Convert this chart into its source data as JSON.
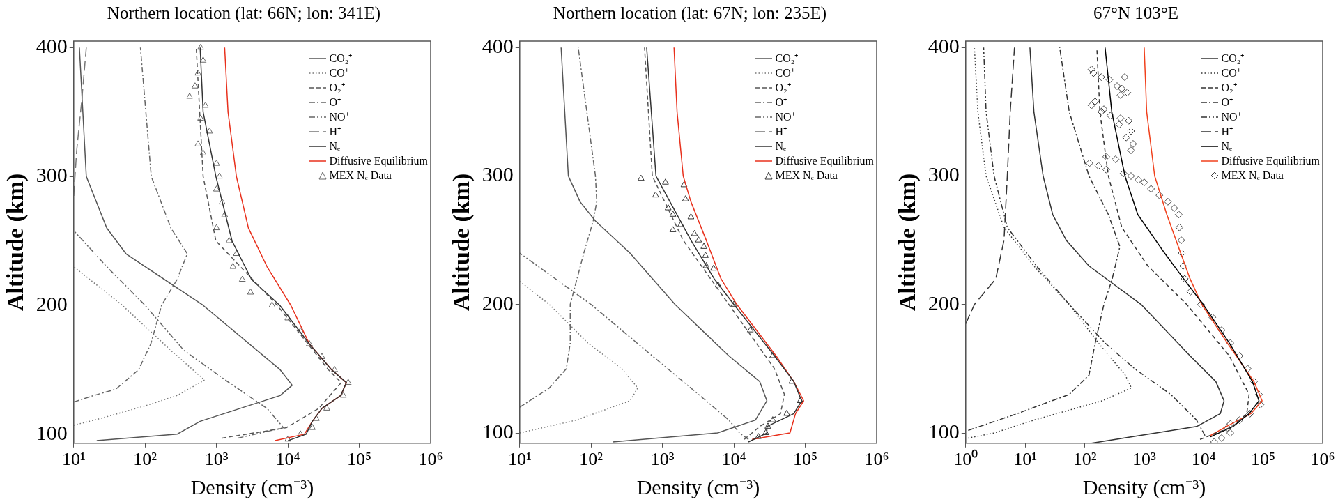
{
  "chart_data": [
    {
      "type": "line",
      "title": "Northern location (lat: 66N; lon: 341E)",
      "xlabel": "Density (cm⁻³)",
      "ylabel": "Altitude (km)",
      "log": "x",
      "grid": false,
      "legend": "top right",
      "xlim": [
        10,
        1000000
      ],
      "xticks": [
        {
          "value": 10,
          "label": "10¹"
        },
        {
          "value": 100,
          "label": "10²"
        },
        {
          "value": 1000,
          "label": "10³"
        },
        {
          "value": 10000,
          "label": "10⁴"
        },
        {
          "value": 100000,
          "label": "10⁵"
        },
        {
          "value": 1000000,
          "label": "10⁶"
        }
      ],
      "ylim": [
        93,
        405
      ],
      "yticks": [
        100,
        200,
        300,
        400
      ],
      "series": [
        {
          "name": "CO₂⁺",
          "color": "#555555",
          "line_style": "solid",
          "x": [
            21,
            280,
            590,
            7800,
            11500,
            7800,
            650,
            54,
            29,
            15,
            12
          ],
          "values": [
            95,
            100,
            110,
            130,
            138,
            150,
            200,
            240,
            260,
            300,
            400
          ]
        },
        {
          "name": "CO⁺",
          "color": "#777777",
          "line_style": "dotted",
          "x": [
            10,
            23,
            100,
            280,
            680,
            230,
            48,
            10
          ],
          "values": [
            107,
            112,
            122,
            130,
            142,
            165,
            200,
            230
          ]
        },
        {
          "name": "O₂⁺",
          "color": "#555555",
          "line_style": "dashed",
          "x": [
            1200,
            9500,
            27000,
            56000,
            37000,
            7100,
            980,
            650,
            520
          ],
          "values": [
            97,
            105,
            120,
            140,
            150,
            200,
            250,
            300,
            400
          ]
        },
        {
          "name": "O⁺",
          "color": "#666666",
          "line_style": "dashdot",
          "x": [
            10,
            19,
            39,
            81,
            120,
            170,
            280,
            390,
            230,
            122,
            86
          ],
          "values": [
            125,
            130,
            135,
            150,
            170,
            200,
            220,
            240,
            260,
            300,
            400
          ]
        },
        {
          "name": "NO⁺",
          "color": "#666666",
          "line_style": "dashdotdot",
          "x": [
            2000,
            8700,
            5100,
            1500,
            350,
            100,
            29,
            10
          ],
          "values": [
            97,
            105,
            120,
            140,
            165,
            200,
            230,
            258
          ]
        },
        {
          "name": "H⁺",
          "color": "#777777",
          "line_style": "longdash",
          "x": [
            10,
            11,
            13,
            15
          ],
          "values": [
            285,
            320,
            360,
            400
          ]
        },
        {
          "name": "Nₑ",
          "color": "#333333",
          "line_style": "solid",
          "x": [
            10000,
            18000,
            22000,
            30000,
            55000,
            66000,
            41000,
            20000,
            7700,
            3100,
            1650,
            980,
            650,
            590
          ],
          "values": [
            95,
            100,
            110,
            120,
            130,
            140,
            150,
            170,
            200,
            220,
            250,
            300,
            350,
            400
          ]
        },
        {
          "name": "Diffusive Equilibrium",
          "color": "#e8301c",
          "line_style": "solid",
          "x": [
            6600,
            17000,
            22000,
            30000,
            55000,
            66000,
            41000,
            20000,
            11000,
            5100,
            2800,
            1900,
            1450,
            1300
          ],
          "values": [
            95,
            100,
            110,
            120,
            130,
            140,
            150,
            170,
            200,
            230,
            260,
            300,
            350,
            400
          ]
        },
        {
          "name": "MEX Nₑ Data",
          "color": "#666666",
          "type": "scatter",
          "marker": "triangle",
          "x": [
            10000,
            15000,
            22000,
            25000,
            35000,
            60000,
            70000,
            45000,
            30000,
            20000,
            15000,
            10000,
            6000,
            3000,
            2300,
            1700,
            1900,
            1500,
            1000,
            1300,
            1200,
            1000,
            1100,
            1000,
            650,
            550,
            800,
            600,
            700,
            420,
            500,
            550,
            650,
            600
          ],
          "values": [
            96,
            100,
            105,
            112,
            120,
            130,
            140,
            150,
            160,
            170,
            180,
            190,
            200,
            210,
            220,
            230,
            240,
            250,
            260,
            270,
            280,
            290,
            300,
            310,
            318,
            325,
            335,
            345,
            355,
            362,
            370,
            380,
            390,
            400
          ]
        }
      ]
    },
    {
      "type": "line",
      "title": "Northern location (lat: 67N; lon: 235E)",
      "xlabel": "Density (cm⁻³)",
      "ylabel": "Altitude (km)",
      "log": "x",
      "grid": false,
      "legend": "top right",
      "xlim": [
        10,
        1000000
      ],
      "xticks": [
        {
          "value": 10,
          "label": "10¹"
        },
        {
          "value": 100,
          "label": "10²"
        },
        {
          "value": 1000,
          "label": "10³"
        },
        {
          "value": 10000,
          "label": "10⁴"
        },
        {
          "value": 100000,
          "label": "10⁵"
        },
        {
          "value": 1000000,
          "label": "10⁶"
        }
      ],
      "ylim": [
        92,
        405
      ],
      "yticks": [
        100,
        200,
        300,
        400
      ],
      "series": [
        {
          "name": "CO₂⁺",
          "color": "#555555",
          "line_style": "solid",
          "x": [
            200,
            5900,
            20000,
            29000,
            23000,
            8500,
            1500,
            350,
            115,
            70,
            48,
            38
          ],
          "values": [
            93,
            100,
            110,
            125,
            140,
            160,
            200,
            240,
            265,
            280,
            300,
            400
          ]
        },
        {
          "name": "CO⁺",
          "color": "#777777",
          "line_style": "dotted",
          "x": [
            10,
            62,
            350,
            450,
            270,
            90,
            26,
            10
          ],
          "values": [
            100,
            110,
            125,
            135,
            150,
            170,
            200,
            218
          ]
        },
        {
          "name": "O₂⁺",
          "color": "#555555",
          "line_style": "dashed",
          "x": [
            14000,
            23000,
            45000,
            51000,
            37000,
            8500,
            1950,
            720,
            560
          ],
          "values": [
            95,
            105,
            115,
            130,
            150,
            200,
            250,
            300,
            400
          ]
        },
        {
          "name": "O⁺",
          "color": "#666666",
          "line_style": "dashdot",
          "x": [
            10,
            26,
            45,
            51,
            51,
            79,
            107,
            120,
            115,
            66
          ],
          "values": [
            120,
            135,
            150,
            170,
            200,
            240,
            265,
            280,
            300,
            400
          ]
        },
        {
          "name": "NO⁺",
          "color": "#666666",
          "line_style": "dashdotdot",
          "x": [
            16000,
            12000,
            8500,
            3200,
            720,
            100,
            10
          ],
          "values": [
            95,
            100,
            110,
            130,
            160,
            200,
            240
          ]
        },
        {
          "name": "H⁺",
          "color": "#777777",
          "line_style": "longdash"
        },
        {
          "name": "Nₑ",
          "color": "#333333",
          "line_style": "solid",
          "x": [
            16000,
            29000,
            29000,
            69000,
            89000,
            69000,
            37000,
            10000,
            5300,
            2500,
            810,
            600
          ],
          "values": [
            93,
            100,
            105,
            115,
            125,
            140,
            160,
            200,
            220,
            250,
            300,
            400
          ]
        },
        {
          "name": "Diffusive Equilibrium",
          "color": "#e8301c",
          "line_style": "solid",
          "x": [
            18000,
            61000,
            73000,
            95000,
            69000,
            39000,
            11000,
            6600,
            4100,
            2500,
            1950,
            1600,
            1450
          ],
          "values": [
            95,
            100,
            115,
            125,
            140,
            160,
            200,
            220,
            250,
            280,
            300,
            350,
            400
          ]
        },
        {
          "name": "MEX Nₑ Data",
          "color": "#333333",
          "type": "scatter",
          "marker": "triangle",
          "x": [
            22000,
            28000,
            30000,
            35000,
            55000,
            85000,
            65000,
            35000,
            17000,
            10000,
            6000,
            5200,
            4100,
            4000,
            3800,
            3200,
            2800,
            1400,
            1800,
            2500,
            1400,
            1200,
            2100,
            800,
            2000,
            1100,
            500
          ],
          "values": [
            97,
            100,
            105,
            110,
            115,
            125,
            140,
            160,
            180,
            200,
            215,
            228,
            230,
            238,
            245,
            250,
            255,
            258,
            262,
            268,
            270,
            275,
            282,
            285,
            293,
            295,
            298
          ]
        }
      ]
    },
    {
      "type": "line",
      "title": "67°N 103°E",
      "xlabel": "Density (cm⁻³)",
      "ylabel": "Altitude (km)",
      "log": "x",
      "grid": false,
      "legend": "top right",
      "xlim": [
        1,
        1000000
      ],
      "xticks": [
        {
          "value": 1,
          "label": "10⁰"
        },
        {
          "value": 10,
          "label": "10¹"
        },
        {
          "value": 100,
          "label": "10²"
        },
        {
          "value": 1000,
          "label": "10³"
        },
        {
          "value": 10000,
          "label": "10⁴"
        },
        {
          "value": 100000,
          "label": "10⁵"
        },
        {
          "value": 1000000,
          "label": "10⁶"
        }
      ],
      "ylim": [
        92,
        405
      ],
      "yticks": [
        100,
        200,
        300,
        400
      ],
      "series": [
        {
          "name": "CO₂⁺",
          "color": "#333333",
          "line_style": "solid",
          "x": [
            130,
            7600,
            19000,
            22000,
            16000,
            5900,
            890,
            118,
            49,
            29,
            20,
            14,
            12
          ],
          "values": [
            92,
            105,
            115,
            125,
            140,
            160,
            200,
            230,
            250,
            270,
            300,
            350,
            400
          ]
        },
        {
          "name": "CO⁺",
          "color": "#333333",
          "line_style": "dotted",
          "x": [
            1.1,
            3,
            14,
            195,
            610,
            480,
            170,
            55,
            14,
            4.4,
            2.2,
            1.6,
            1.4
          ],
          "values": [
            96,
            100,
            110,
            125,
            135,
            145,
            170,
            200,
            230,
            260,
            300,
            350,
            400
          ]
        },
        {
          "name": "O₂⁺",
          "color": "#333333",
          "line_style": "dashed",
          "x": [
            8700,
            31000,
            53000,
            58000,
            27000,
            5200,
            1150,
            420,
            250,
            180,
            160
          ],
          "values": [
            95,
            105,
            115,
            130,
            160,
            200,
            230,
            260,
            300,
            350,
            400
          ]
        },
        {
          "name": "O⁺",
          "color": "#333333",
          "line_style": "dashdot",
          "x": [
            1.1,
            7.3,
            55,
            118,
            150,
            210,
            290,
            390,
            250,
            118,
            55,
            38
          ],
          "values": [
            102,
            115,
            130,
            145,
            170,
            200,
            220,
            245,
            270,
            300,
            350,
            400
          ]
        },
        {
          "name": "NO⁺",
          "color": "#333333",
          "line_style": "dashdotdot",
          "x": [
            10500,
            7600,
            2800,
            690,
            220,
            55,
            15.5,
            5,
            3,
            2.2,
            2
          ],
          "values": [
            98,
            110,
            130,
            150,
            170,
            200,
            230,
            260,
            300,
            350,
            400
          ]
        },
        {
          "name": "H⁺",
          "color": "#333333",
          "line_style": "longdash",
          "x": [
            1,
            1.4,
            3.2,
            4.4,
            5,
            5.6,
            6.6
          ],
          "values": [
            185,
            200,
            220,
            250,
            300,
            350,
            400
          ]
        },
        {
          "name": "Nₑ",
          "color": "#000000",
          "line_style": "solid",
          "x": [
            13000,
            31000,
            58000,
            85000,
            66000,
            27000,
            9800,
            4600,
            2200,
            780,
            475,
            285,
            220
          ],
          "values": [
            97,
            105,
            115,
            125,
            140,
            170,
            200,
            220,
            240,
            270,
            300,
            350,
            400
          ]
        },
        {
          "name": "Diffusive Equilibrium",
          "color": "#f0401c",
          "line_style": "solid",
          "x": [
            13000,
            24000,
            62000,
            96000,
            70000,
            25000,
            9300,
            5900,
            4100,
            2400,
            1500,
            1100,
            1000
          ],
          "values": [
            98,
            105,
            115,
            125,
            140,
            170,
            200,
            220,
            240,
            270,
            300,
            350,
            400
          ]
        },
        {
          "name": "MEX Nₑ Data",
          "color": "#444444",
          "type": "scatter",
          "marker": "diamond",
          "x": [
            15000,
            20000,
            28000,
            25000,
            28000,
            40000,
            60000,
            90000,
            85000,
            70000,
            55000,
            40000,
            28000,
            20000,
            14000,
            9000,
            6000,
            4800,
            4500,
            4300,
            4200,
            3900,
            3800,
            3200,
            2500,
            1800,
            1300,
            1000,
            800,
            600,
            450,
            230,
            170,
            120,
            330,
            230,
            600,
            650,
            500,
            600,
            380,
            550,
            400,
            270,
            190,
            210,
            130,
            150,
            400,
            520,
            420,
            350,
            470,
            260,
            190,
            140,
            130
          ],
          "values": [
            93,
            96,
            100,
            104,
            107,
            110,
            115,
            122,
            130,
            140,
            150,
            160,
            170,
            180,
            190,
            200,
            210,
            220,
            230,
            240,
            250,
            260,
            270,
            275,
            280,
            285,
            290,
            295,
            297,
            300,
            302,
            305,
            308,
            310,
            313,
            315,
            320,
            325,
            330,
            335,
            340,
            343,
            345,
            347,
            350,
            352,
            355,
            358,
            363,
            365,
            368,
            370,
            377,
            375,
            377,
            380,
            383
          ]
        }
      ]
    }
  ]
}
